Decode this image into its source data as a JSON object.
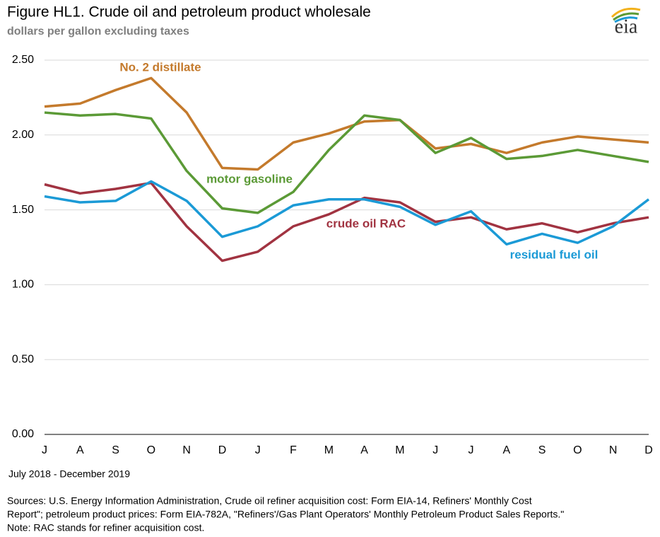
{
  "chart_data": {
    "type": "line",
    "title": "Figure HL1.  Crude oil and petroleum product wholesale",
    "subtitle": "dollars per gallon excluding taxes",
    "logo": "eia",
    "categories": [
      "J",
      "A",
      "S",
      "O",
      "N",
      "D",
      "J",
      "F",
      "M",
      "A",
      "M",
      "J",
      "J",
      "A",
      "S",
      "O",
      "N",
      "D"
    ],
    "series": [
      {
        "name": "No. 2 distillate",
        "color": "#c47a2c",
        "values": [
          2.19,
          2.21,
          2.3,
          2.38,
          2.15,
          1.78,
          1.77,
          1.95,
          2.01,
          2.09,
          2.1,
          1.91,
          1.94,
          1.88,
          1.95,
          1.99,
          1.97,
          1.95
        ]
      },
      {
        "name": "motor gasoline",
        "color": "#5b9a36",
        "values": [
          2.15,
          2.13,
          2.14,
          2.11,
          1.76,
          1.51,
          1.48,
          1.62,
          1.9,
          2.13,
          2.1,
          1.88,
          1.98,
          1.84,
          1.86,
          1.9,
          1.86,
          1.82
        ]
      },
      {
        "name": "crude oil RAC",
        "color": "#a13341",
        "values": [
          1.67,
          1.61,
          1.64,
          1.68,
          1.39,
          1.16,
          1.22,
          1.39,
          1.47,
          1.58,
          1.55,
          1.42,
          1.45,
          1.37,
          1.41,
          1.35,
          1.41,
          1.45
        ]
      },
      {
        "name": "residual fuel oil",
        "color": "#1b9ad6",
        "values": [
          1.59,
          1.55,
          1.56,
          1.69,
          1.56,
          1.32,
          1.39,
          1.53,
          1.57,
          1.57,
          1.52,
          1.4,
          1.49,
          1.27,
          1.34,
          1.28,
          1.39,
          1.57
        ]
      }
    ],
    "ylim": [
      0,
      2.5
    ],
    "yticks": [
      {
        "value": 0,
        "label": "0.00"
      },
      {
        "value": 0.5,
        "label": "0.50"
      },
      {
        "value": 1,
        "label": "1.00"
      },
      {
        "value": 1.5,
        "label": "1.50"
      },
      {
        "value": 2,
        "label": "2.00"
      },
      {
        "value": 2.5,
        "label": "2.50"
      }
    ],
    "grid": true,
    "date_range": "July 2018 - December 2019",
    "sources": [
      "Sources:  U.S. Energy Information Administration, Crude oil refiner acquisition cost:  Form EIA-14, Refiners' Monthly Cost",
      "Report\"; petroleum product prices:  Form EIA-782A, \"Refiners'/Gas Plant Operators' Monthly Petroleum Product Sales Reports.\""
    ],
    "note": "Note:  RAC stands for refiner acquisition cost."
  }
}
